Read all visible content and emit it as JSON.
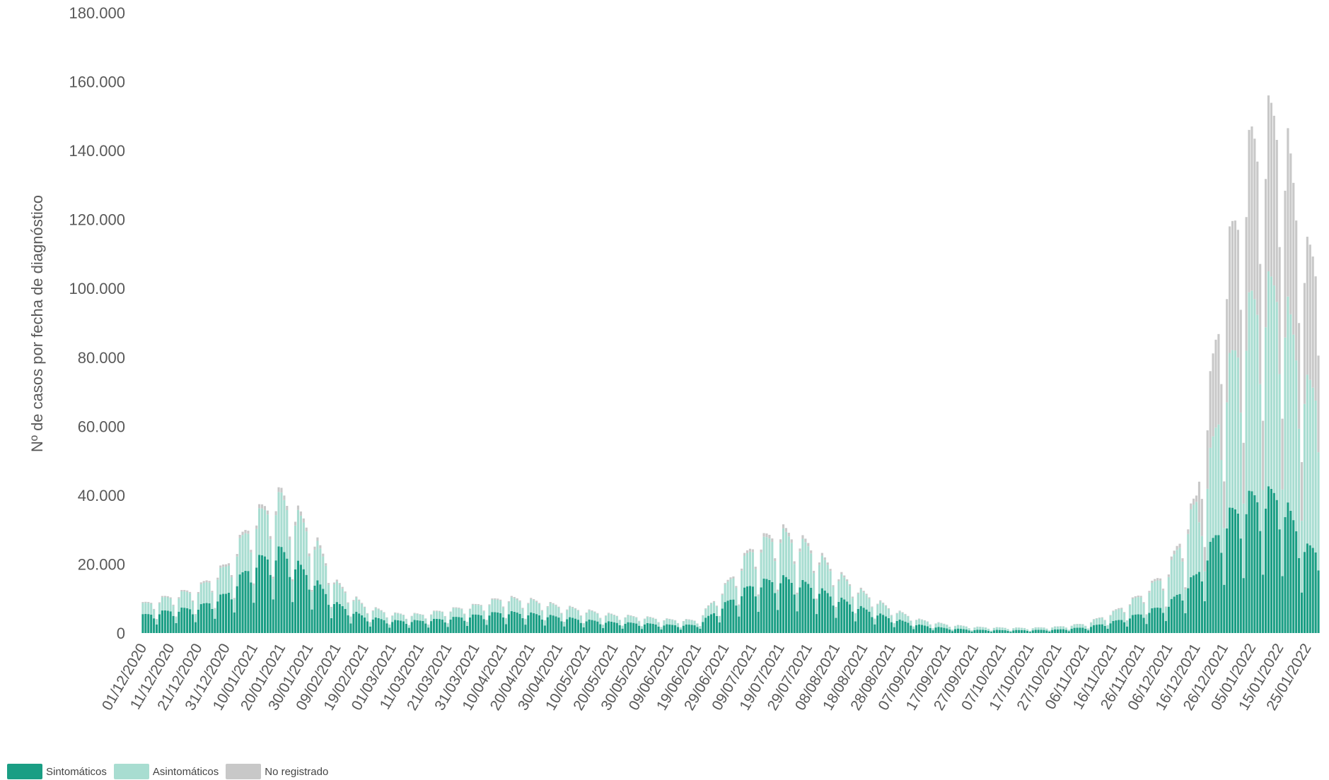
{
  "chart_data": {
    "type": "bar",
    "stacked": true,
    "xlabel": "",
    "ylabel": "Nº de casos por fecha de diagnóstico",
    "ylim": [
      0,
      180000
    ],
    "yticks": [
      0,
      20000,
      40000,
      60000,
      80000,
      100000,
      120000,
      140000,
      160000,
      180000
    ],
    "ytick_labels": [
      "0",
      "20.000",
      "40.000",
      "60.000",
      "80.000",
      "100.000",
      "120.000",
      "140.000",
      "160.000",
      "180.000"
    ],
    "x_start": "01/12/2020",
    "x_end": "29/01/2022",
    "xtick_labels": [
      "01/12/2020",
      "11/12/2020",
      "21/12/2020",
      "31/12/2020",
      "10/01/2021",
      "20/01/2021",
      "30/01/2021",
      "09/02/2021",
      "19/02/2021",
      "01/03/2021",
      "11/03/2021",
      "21/03/2021",
      "31/03/2021",
      "10/04/2021",
      "20/04/2021",
      "30/04/2021",
      "10/05/2021",
      "20/05/2021",
      "30/05/2021",
      "09/06/2021",
      "19/06/2021",
      "29/06/2021",
      "09/07/2021",
      "19/07/2021",
      "29/07/2021",
      "08/08/2021",
      "18/08/2021",
      "28/08/2021",
      "07/09/2021",
      "17/09/2021",
      "27/09/2021",
      "07/10/2021",
      "17/10/2021",
      "27/10/2021",
      "06/11/2021",
      "16/11/2021",
      "26/11/2021",
      "06/12/2021",
      "16/12/2021",
      "26/12/2021",
      "05/01/2022",
      "15/01/2022",
      "25/01/2022"
    ],
    "series": [
      {
        "name": "Sintomáticos",
        "color": "#1a9e84"
      },
      {
        "name": "Asintomáticos",
        "color": "#a8ddd1"
      },
      {
        "name": "No registrado",
        "color": "#c8c8c8"
      }
    ],
    "weekly_profile": {
      "Sintomáticos": [
        {
          "date": "01/12/2020",
          "peak": 5500
        },
        {
          "date": "11/12/2020",
          "peak": 7000
        },
        {
          "date": "21/12/2020",
          "peak": 8000
        },
        {
          "date": "31/12/2020",
          "peak": 12000
        },
        {
          "date": "10/01/2021",
          "peak": 22000
        },
        {
          "date": "20/01/2021",
          "peak": 25500
        },
        {
          "date": "30/01/2021",
          "peak": 18000
        },
        {
          "date": "09/02/2021",
          "peak": 9000
        },
        {
          "date": "19/02/2021",
          "peak": 5000
        },
        {
          "date": "01/03/2021",
          "peak": 3800
        },
        {
          "date": "11/03/2021",
          "peak": 3800
        },
        {
          "date": "21/03/2021",
          "peak": 4500
        },
        {
          "date": "31/03/2021",
          "peak": 5500
        },
        {
          "date": "10/04/2021",
          "peak": 6500
        },
        {
          "date": "20/04/2021",
          "peak": 6000
        },
        {
          "date": "30/04/2021",
          "peak": 5000
        },
        {
          "date": "10/05/2021",
          "peak": 4000
        },
        {
          "date": "20/05/2021",
          "peak": 3300
        },
        {
          "date": "30/05/2021",
          "peak": 3000
        },
        {
          "date": "09/06/2021",
          "peak": 2500
        },
        {
          "date": "19/06/2021",
          "peak": 2500
        },
        {
          "date": "29/06/2021",
          "peak": 9000
        },
        {
          "date": "09/07/2021",
          "peak": 15000
        },
        {
          "date": "19/07/2021",
          "peak": 17000
        },
        {
          "date": "29/07/2021",
          "peak": 15000
        },
        {
          "date": "08/08/2021",
          "peak": 11000
        },
        {
          "date": "18/08/2021",
          "peak": 7500
        },
        {
          "date": "28/08/2021",
          "peak": 4500
        },
        {
          "date": "07/09/2021",
          "peak": 2500
        },
        {
          "date": "17/09/2021",
          "peak": 1500
        },
        {
          "date": "27/09/2021",
          "peak": 1000
        },
        {
          "date": "07/10/2021",
          "peak": 900
        },
        {
          "date": "17/10/2021",
          "peak": 900
        },
        {
          "date": "27/10/2021",
          "peak": 1100
        },
        {
          "date": "06/11/2021",
          "peak": 1800
        },
        {
          "date": "16/11/2021",
          "peak": 3500
        },
        {
          "date": "26/11/2021",
          "peak": 6000
        },
        {
          "date": "06/12/2021",
          "peak": 9000
        },
        {
          "date": "16/12/2021",
          "peak": 18000
        },
        {
          "date": "26/12/2021",
          "peak": 35000
        },
        {
          "date": "05/01/2022",
          "peak": 42000
        },
        {
          "date": "15/01/2022",
          "peak": 43000
        },
        {
          "date": "25/01/2022",
          "peak": 26000
        }
      ],
      "Total": [
        {
          "date": "01/12/2020",
          "peak": 9000
        },
        {
          "date": "11/12/2020",
          "peak": 11500
        },
        {
          "date": "21/12/2020",
          "peak": 14000
        },
        {
          "date": "31/12/2020",
          "peak": 21000
        },
        {
          "date": "10/01/2021",
          "peak": 36000
        },
        {
          "date": "20/01/2021",
          "peak": 43000
        },
        {
          "date": "30/01/2021",
          "peak": 33000
        },
        {
          "date": "09/02/2021",
          "peak": 15500
        },
        {
          "date": "19/02/2021",
          "peak": 8500
        },
        {
          "date": "01/03/2021",
          "peak": 6000
        },
        {
          "date": "11/03/2021",
          "peak": 5800
        },
        {
          "date": "21/03/2021",
          "peak": 7200
        },
        {
          "date": "31/03/2021",
          "peak": 8600
        },
        {
          "date": "10/04/2021",
          "peak": 11000
        },
        {
          "date": "20/04/2021",
          "peak": 10200
        },
        {
          "date": "30/04/2021",
          "peak": 8500
        },
        {
          "date": "10/05/2021",
          "peak": 7000
        },
        {
          "date": "20/05/2021",
          "peak": 5600
        },
        {
          "date": "30/05/2021",
          "peak": 5000
        },
        {
          "date": "09/06/2021",
          "peak": 4200
        },
        {
          "date": "19/06/2021",
          "peak": 4000
        },
        {
          "date": "29/06/2021",
          "peak": 14500
        },
        {
          "date": "09/07/2021",
          "peak": 27000
        },
        {
          "date": "19/07/2021",
          "peak": 32000
        },
        {
          "date": "29/07/2021",
          "peak": 27500
        },
        {
          "date": "08/08/2021",
          "peak": 19000
        },
        {
          "date": "18/08/2021",
          "peak": 12500
        },
        {
          "date": "28/08/2021",
          "peak": 7500
        },
        {
          "date": "07/09/2021",
          "peak": 4200
        },
        {
          "date": "17/09/2021",
          "peak": 2700
        },
        {
          "date": "27/09/2021",
          "peak": 1900
        },
        {
          "date": "07/10/2021",
          "peak": 1700
        },
        {
          "date": "17/10/2021",
          "peak": 1600
        },
        {
          "date": "27/10/2021",
          "peak": 2000
        },
        {
          "date": "06/11/2021",
          "peak": 3000
        },
        {
          "date": "16/11/2021",
          "peak": 6500
        },
        {
          "date": "26/11/2021",
          "peak": 12000
        },
        {
          "date": "06/12/2021",
          "peak": 20000
        },
        {
          "date": "16/12/2021",
          "peak": 42000
        },
        {
          "date": "26/12/2021",
          "peak": 110000
        },
        {
          "date": "05/01/2022",
          "peak": 150000
        },
        {
          "date": "15/01/2022",
          "peak": 160000
        },
        {
          "date": "25/01/2022",
          "peak": 115000
        }
      ]
    },
    "legend_position": "bottom-left",
    "grid": false
  },
  "legend": {
    "items": [
      {
        "label": "Sintomáticos",
        "color": "#1a9e84"
      },
      {
        "label": "Asintomáticos",
        "color": "#a8ddd1"
      },
      {
        "label": "No registrado",
        "color": "#c8c8c8"
      }
    ]
  }
}
